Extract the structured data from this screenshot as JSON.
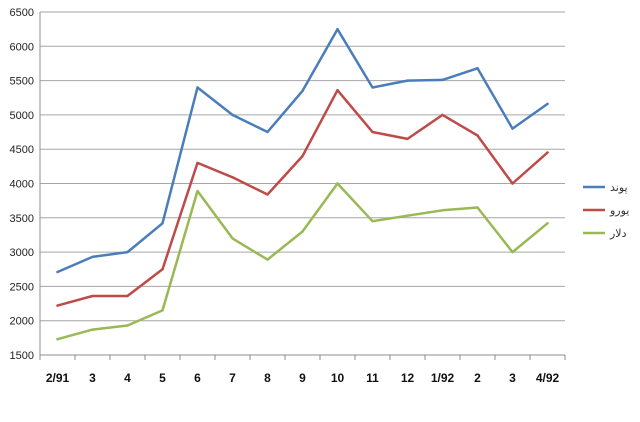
{
  "chart_data": {
    "type": "line",
    "title": "",
    "xlabel": "",
    "ylabel": "",
    "categories": [
      "2/91",
      "3",
      "4",
      "5",
      "6",
      "7",
      "8",
      "9",
      "10",
      "11",
      "12",
      "1/92",
      "2",
      "3",
      "4/92"
    ],
    "ylim": [
      1500,
      6500
    ],
    "yticks": [
      1500,
      2000,
      2500,
      3000,
      3500,
      4000,
      4500,
      5000,
      5500,
      6000,
      6500
    ],
    "grid": true,
    "legend_position": "right",
    "series": [
      {
        "name": "پوند",
        "color": "#4a7ebb",
        "values": [
          2710,
          2930,
          3000,
          3420,
          5400,
          5000,
          4750,
          5350,
          6250,
          5400,
          5500,
          5510,
          5680,
          4800,
          5160
        ]
      },
      {
        "name": "یورو",
        "color": "#be4b48",
        "values": [
          2220,
          2360,
          2360,
          2750,
          4300,
          4090,
          3840,
          4400,
          5360,
          4750,
          4650,
          5000,
          4700,
          4000,
          4450
        ]
      },
      {
        "name": "دلار",
        "color": "#98b954",
        "values": [
          1730,
          1870,
          1930,
          2150,
          3890,
          3200,
          2890,
          3300,
          4000,
          3450,
          3530,
          3610,
          3650,
          3000,
          3420
        ]
      }
    ]
  }
}
